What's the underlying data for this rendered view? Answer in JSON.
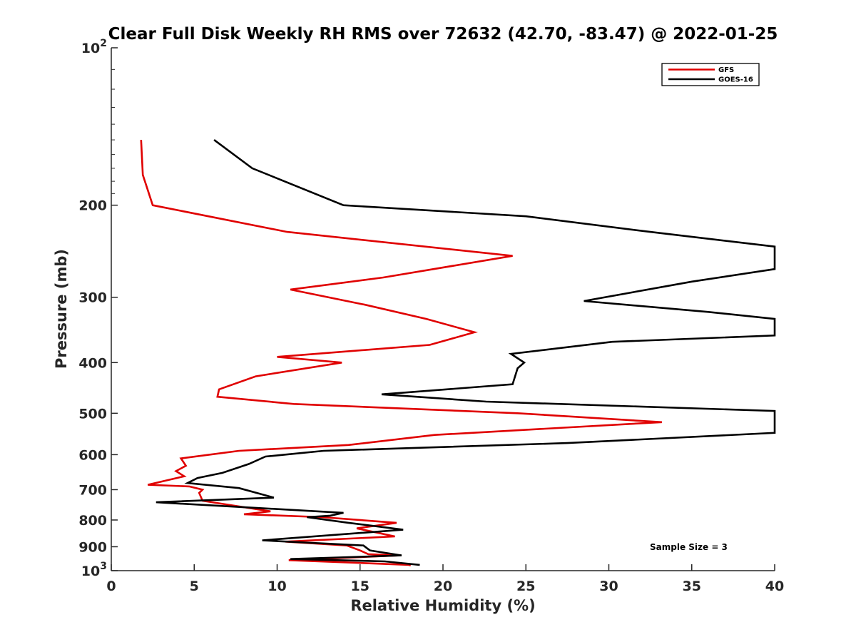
{
  "chart_data": {
    "type": "line",
    "title": "Clear Full Disk Weekly RH RMS over 72632 (42.70, -83.47) @ 2022-01-25",
    "xlabel": "Relative Humidity (%)",
    "ylabel": "Pressure (mb)",
    "xlim": [
      0,
      40
    ],
    "ylim": [
      100,
      1000
    ],
    "yscale": "log",
    "y_reversed": true,
    "x_ticks": [
      "0",
      "5",
      "10",
      "15",
      "20",
      "25",
      "30",
      "35",
      "40"
    ],
    "y_ticks": [
      {
        "value": 100,
        "base": "10",
        "exp": "2"
      },
      {
        "value": 200,
        "label": "200"
      },
      {
        "value": 300,
        "label": "300"
      },
      {
        "value": 400,
        "label": "400"
      },
      {
        "value": 500,
        "label": "500"
      },
      {
        "value": 600,
        "label": "600"
      },
      {
        "value": 700,
        "label": "700"
      },
      {
        "value": 800,
        "label": "800"
      },
      {
        "value": 900,
        "label": "900"
      },
      {
        "value": 1000,
        "base": "10",
        "exp": "3"
      }
    ],
    "grid": false,
    "legend_position": "top-right",
    "annotation": "Sample Size = 3",
    "series": [
      {
        "name": "GFS",
        "color": "#e00000",
        "points": [
          [
            1.8,
            150
          ],
          [
            1.9,
            175
          ],
          [
            2.5,
            200
          ],
          [
            10.6,
            225
          ],
          [
            24.2,
            250
          ],
          [
            16.4,
            275
          ],
          [
            10.8,
            290
          ],
          [
            15.3,
            310
          ],
          [
            19.0,
            330
          ],
          [
            21.9,
            350
          ],
          [
            19.2,
            370
          ],
          [
            10.0,
            390
          ],
          [
            13.9,
            400
          ],
          [
            8.7,
            425
          ],
          [
            6.5,
            450
          ],
          [
            6.4,
            465
          ],
          [
            11.0,
            480
          ],
          [
            24.5,
            500
          ],
          [
            33.2,
            520
          ],
          [
            19.5,
            550
          ],
          [
            14.3,
            575
          ],
          [
            7.7,
            590
          ],
          [
            4.2,
            610
          ],
          [
            4.5,
            630
          ],
          [
            3.9,
            645
          ],
          [
            4.4,
            660
          ],
          [
            2.2,
            685
          ],
          [
            4.7,
            690
          ],
          [
            5.5,
            700
          ],
          [
            5.3,
            710
          ],
          [
            5.5,
            735
          ],
          [
            9.6,
            770
          ],
          [
            8.0,
            780
          ],
          [
            12.7,
            790
          ],
          [
            17.2,
            810
          ],
          [
            14.8,
            830
          ],
          [
            17.1,
            860
          ],
          [
            10.5,
            880
          ],
          [
            14.2,
            895
          ],
          [
            15.0,
            915
          ],
          [
            15.5,
            930
          ],
          [
            17.4,
            935
          ],
          [
            10.7,
            955
          ],
          [
            18.0,
            975
          ],
          [
            18.0,
            980
          ]
        ]
      },
      {
        "name": "GOES-16",
        "color": "#000000",
        "points": [
          [
            6.2,
            150
          ],
          [
            8.5,
            170
          ],
          [
            14.0,
            200
          ],
          [
            25.0,
            210
          ],
          [
            32.5,
            225
          ],
          [
            40.0,
            240
          ],
          [
            40.0,
            265
          ],
          [
            35.0,
            280
          ],
          [
            28.5,
            305
          ],
          [
            36.0,
            320
          ],
          [
            40.0,
            330
          ],
          [
            40.0,
            355
          ],
          [
            30.2,
            365
          ],
          [
            24.1,
            385
          ],
          [
            24.9,
            400
          ],
          [
            24.5,
            410
          ],
          [
            24.2,
            440
          ],
          [
            16.3,
            460
          ],
          [
            22.6,
            475
          ],
          [
            40.0,
            495
          ],
          [
            40.0,
            545
          ],
          [
            27.5,
            570
          ],
          [
            12.8,
            590
          ],
          [
            9.3,
            605
          ],
          [
            8.3,
            625
          ],
          [
            6.7,
            650
          ],
          [
            5.2,
            665
          ],
          [
            4.6,
            680
          ],
          [
            7.7,
            695
          ],
          [
            9.8,
            725
          ],
          [
            2.7,
            740
          ],
          [
            14.0,
            775
          ],
          [
            13.2,
            785
          ],
          [
            11.8,
            790
          ],
          [
            14.3,
            810
          ],
          [
            17.6,
            835
          ],
          [
            9.1,
            875
          ],
          [
            15.2,
            895
          ],
          [
            15.6,
            915
          ],
          [
            17.5,
            935
          ],
          [
            10.8,
            950
          ],
          [
            16.5,
            960
          ],
          [
            18.6,
            975
          ]
        ]
      }
    ]
  }
}
